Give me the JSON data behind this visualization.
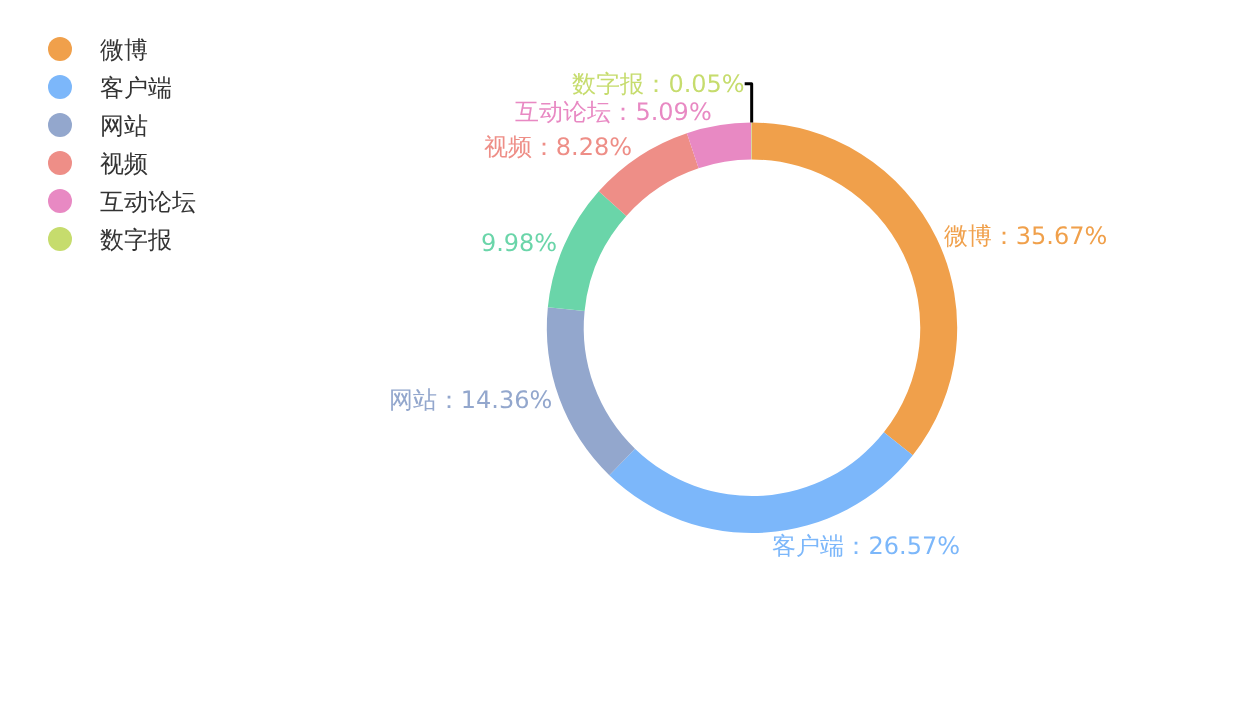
{
  "chart_data": {
    "type": "donut",
    "categories": [
      "微博",
      "客户端",
      "网站",
      null,
      "视频",
      "互动论坛",
      "数字报"
    ],
    "values": [
      35.67,
      26.57,
      14.36,
      9.98,
      8.28,
      5.09,
      0.05
    ],
    "colors": [
      "#f0a04b",
      "#7cb7fa",
      "#93a7cd",
      "#6ad5a9",
      "#ee8e87",
      "#e889c3",
      "#c6dc6d"
    ],
    "value_labels": [
      "微博：35.67%",
      "客户端：26.57%",
      "网站：14.36%",
      "9.98%",
      "视频：8.28%",
      "互动论坛：5.09%",
      "数字报：0.05%"
    ],
    "legend": "top left"
  }
}
